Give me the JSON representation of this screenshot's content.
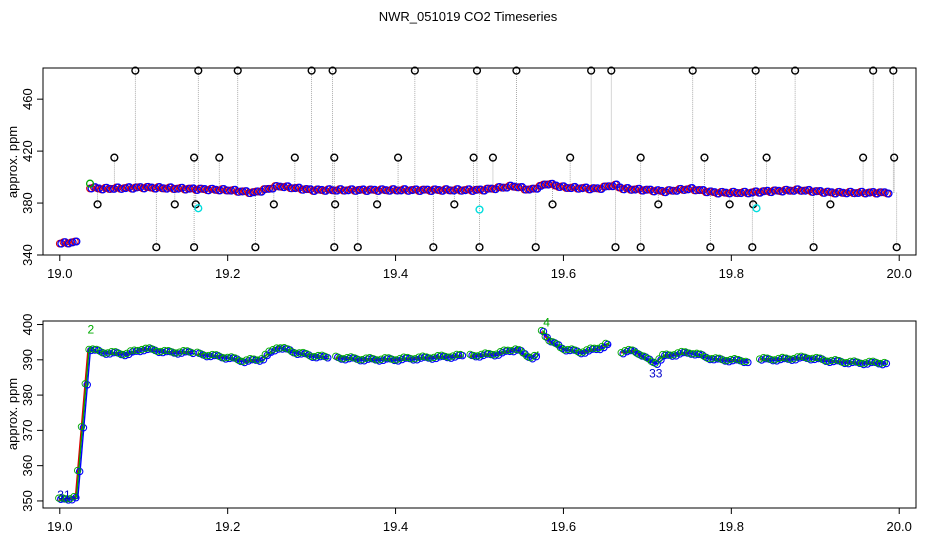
{
  "figure_title": "NWR_051019  CO2 Timeseries",
  "chart_data": [
    {
      "type": "scatter",
      "title": "",
      "xlabel": "",
      "ylabel": "approx. ppm",
      "xlim": [
        18.98,
        20.02
      ],
      "ylim": [
        340,
        484
      ],
      "xticks": [
        19.0,
        19.2,
        19.4,
        19.6,
        19.8,
        20.0
      ],
      "xtick_labels": [
        "19.0",
        "19.2",
        "19.4",
        "19.6",
        "19.8",
        "20.0"
      ],
      "yticks": [
        340,
        380,
        420,
        460
      ],
      "ytick_labels": [
        "340",
        "380",
        "420",
        "460"
      ],
      "grid": false,
      "baseline": [
        [
          19.0,
          349
        ],
        [
          19.02,
          350
        ],
        [
          19.035,
          392
        ],
        [
          19.05,
          391
        ],
        [
          19.1,
          392
        ],
        [
          19.15,
          391
        ],
        [
          19.2,
          390
        ],
        [
          19.23,
          388
        ],
        [
          19.26,
          393
        ],
        [
          19.3,
          390
        ],
        [
          19.35,
          390
        ],
        [
          19.4,
          390
        ],
        [
          19.45,
          390
        ],
        [
          19.5,
          390
        ],
        [
          19.54,
          393
        ],
        [
          19.56,
          390
        ],
        [
          19.58,
          395
        ],
        [
          19.6,
          392
        ],
        [
          19.64,
          391
        ],
        [
          19.66,
          394
        ],
        [
          19.67,
          391
        ],
        [
          19.7,
          390
        ],
        [
          19.72,
          389
        ],
        [
          19.75,
          391
        ],
        [
          19.78,
          388
        ],
        [
          19.82,
          388
        ],
        [
          19.84,
          389
        ],
        [
          19.88,
          390
        ],
        [
          19.92,
          388
        ],
        [
          19.96,
          388
        ],
        [
          19.99,
          388
        ]
      ],
      "spikes_high": [
        19.09,
        19.165,
        19.212,
        19.3,
        19.325,
        19.423,
        19.497,
        19.544,
        19.633,
        19.657,
        19.754,
        19.829,
        19.876,
        19.969,
        19.993
      ],
      "spikes_mid": [
        19.065,
        19.16,
        19.19,
        19.28,
        19.327,
        19.403,
        19.493,
        19.516,
        19.608,
        19.692,
        19.768,
        19.842,
        19.957,
        19.994
      ],
      "spikes_low": [
        19.115,
        19.16,
        19.233,
        19.327,
        19.355,
        19.445,
        19.5,
        19.567,
        19.662,
        19.692,
        19.775,
        19.825,
        19.898,
        19.997
      ],
      "spikes_dip": [
        19.045,
        19.137,
        19.162,
        19.255,
        19.328,
        19.378,
        19.47,
        19.587,
        19.713,
        19.798,
        19.826,
        19.918
      ],
      "cyan_points": [
        [
          19.165,
          376
        ],
        [
          19.5,
          375
        ],
        [
          19.83,
          376
        ]
      ]
    },
    {
      "type": "line",
      "title": "",
      "xlabel": "",
      "ylabel": "approx. ppm",
      "xlim": [
        18.98,
        20.02
      ],
      "ylim": [
        348,
        401
      ],
      "xticks": [
        19.0,
        19.2,
        19.4,
        19.6,
        19.8,
        20.0
      ],
      "xtick_labels": [
        "19.0",
        "19.2",
        "19.4",
        "19.6",
        "19.8",
        "20.0"
      ],
      "yticks": [
        350,
        360,
        370,
        380,
        390,
        400
      ],
      "ytick_labels": [
        "350",
        "360",
        "370",
        "380",
        "390",
        "400"
      ],
      "grid": false,
      "segments": [
        [
          [
            19.0,
            350.2
          ],
          [
            19.01,
            350.5
          ],
          [
            19.02,
            351
          ],
          [
            19.035,
            393
          ],
          [
            19.05,
            392
          ],
          [
            19.08,
            391.5
          ],
          [
            19.1,
            393
          ],
          [
            19.13,
            392
          ],
          [
            19.16,
            392
          ]
        ],
        [
          [
            19.165,
            391.5
          ],
          [
            19.2,
            390.5
          ],
          [
            19.22,
            389.5
          ],
          [
            19.24,
            390
          ],
          [
            19.26,
            393.5
          ],
          [
            19.28,
            392
          ],
          [
            19.3,
            391
          ],
          [
            19.32,
            390.5
          ]
        ],
        [
          [
            19.33,
            390.5
          ],
          [
            19.36,
            390
          ],
          [
            19.4,
            390
          ],
          [
            19.44,
            390.5
          ],
          [
            19.48,
            391
          ]
        ],
        [
          [
            19.49,
            391
          ],
          [
            19.52,
            391.5
          ],
          [
            19.545,
            393
          ],
          [
            19.555,
            391
          ],
          [
            19.565,
            390.5
          ],
          [
            19.57,
            392
          ]
        ],
        [
          [
            19.575,
            398
          ],
          [
            19.585,
            395
          ],
          [
            19.6,
            393
          ],
          [
            19.62,
            392
          ],
          [
            19.64,
            393
          ],
          [
            19.655,
            394.5
          ]
        ],
        [
          [
            19.67,
            392
          ],
          [
            19.685,
            392.5
          ],
          [
            19.7,
            390
          ],
          [
            19.71,
            389
          ],
          [
            19.72,
            391
          ],
          [
            19.75,
            392
          ],
          [
            19.78,
            390
          ],
          [
            19.82,
            389.5
          ]
        ],
        [
          [
            19.835,
            390
          ],
          [
            19.86,
            390
          ],
          [
            19.89,
            390.5
          ],
          [
            19.92,
            389.5
          ],
          [
            19.95,
            389
          ],
          [
            19.985,
            389
          ]
        ]
      ],
      "annotations": [
        {
          "text": "2",
          "x": 19.037,
          "y": 397.5,
          "color": "#00aa00"
        },
        {
          "text": "4",
          "x": 19.58,
          "y": 399.5,
          "color": "#00aa00"
        },
        {
          "text": "33",
          "x": 19.71,
          "y": 385,
          "color": "#0000cc"
        },
        {
          "text": "31",
          "x": 19.005,
          "y": 350.5,
          "color": "#0000cc"
        }
      ]
    }
  ],
  "colors": {
    "black": "#000000",
    "blue": "#0000ff",
    "red": "#dd0000",
    "green": "#00aa00",
    "cyan": "#00dddd",
    "gray": "#999999"
  }
}
